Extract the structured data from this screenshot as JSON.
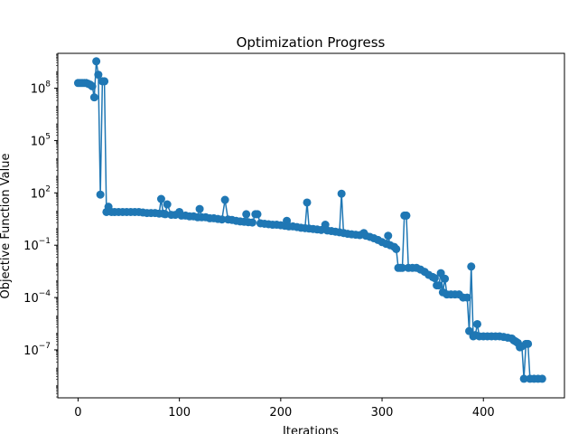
{
  "chart_data": {
    "type": "line",
    "title": "Optimization Progress",
    "xlabel": "Iterations",
    "ylabel": "Objective Function Value",
    "xscale": "linear",
    "yscale": "log",
    "xlim": [
      -20,
      480
    ],
    "ylim_exponent": [
      -9.75,
      10.0
    ],
    "x_ticks": [
      {
        "value": 0,
        "label": "0"
      },
      {
        "value": 100,
        "label": "100"
      },
      {
        "value": 200,
        "label": "200"
      },
      {
        "value": 300,
        "label": "300"
      },
      {
        "value": 400,
        "label": "400"
      }
    ],
    "y_ticks": [
      {
        "exp": 8,
        "base": "10",
        "sup": "8"
      },
      {
        "exp": 5,
        "base": "10",
        "sup": "5"
      },
      {
        "exp": 2,
        "base": "10",
        "sup": "2"
      },
      {
        "exp": -1,
        "base": "10",
        "sup": "−1"
      },
      {
        "exp": -4,
        "base": "10",
        "sup": "−4"
      },
      {
        "exp": -7,
        "base": "10",
        "sup": "−7"
      }
    ],
    "grid": false,
    "legend": "none",
    "series": [
      {
        "color": "#1f77b4",
        "marker": "circle",
        "points": [
          [
            0,
            200000000.0
          ],
          [
            2,
            200000000.0
          ],
          [
            4,
            200000000.0
          ],
          [
            6,
            200000000.0
          ],
          [
            8,
            200000000.0
          ],
          [
            10,
            180000000.0
          ],
          [
            12,
            160000000.0
          ],
          [
            14,
            130000000.0
          ],
          [
            16,
            30000000.0
          ],
          [
            18,
            3500000000.0
          ],
          [
            20,
            600000000.0
          ],
          [
            22,
            80
          ],
          [
            24,
            250000000.0
          ],
          [
            26,
            250000000.0
          ],
          [
            28,
            8
          ],
          [
            30,
            16
          ],
          [
            33,
            8
          ],
          [
            36,
            8
          ],
          [
            40,
            8
          ],
          [
            44,
            8
          ],
          [
            48,
            8
          ],
          [
            52,
            8
          ],
          [
            56,
            8
          ],
          [
            60,
            8
          ],
          [
            64,
            7.5
          ],
          [
            68,
            7
          ],
          [
            72,
            7
          ],
          [
            76,
            7
          ],
          [
            80,
            6.5
          ],
          [
            82,
            45
          ],
          [
            84,
            6.5
          ],
          [
            86,
            6
          ],
          [
            88,
            22
          ],
          [
            92,
            5.5
          ],
          [
            96,
            5.5
          ],
          [
            100,
            8
          ],
          [
            102,
            5
          ],
          [
            106,
            5
          ],
          [
            110,
            4.5
          ],
          [
            114,
            4.5
          ],
          [
            118,
            4
          ],
          [
            120,
            12
          ],
          [
            122,
            4
          ],
          [
            126,
            4
          ],
          [
            130,
            3.5
          ],
          [
            134,
            3.5
          ],
          [
            138,
            3.2
          ],
          [
            142,
            3.0
          ],
          [
            145,
            40
          ],
          [
            148,
            3.0
          ],
          [
            152,
            2.8
          ],
          [
            156,
            2.5
          ],
          [
            160,
            2.3
          ],
          [
            164,
            2.2
          ],
          [
            166,
            6
          ],
          [
            168,
            2.1
          ],
          [
            172,
            2.0
          ],
          [
            175,
            6
          ],
          [
            177,
            6
          ],
          [
            180,
            1.8
          ],
          [
            184,
            1.7
          ],
          [
            188,
            1.6
          ],
          [
            192,
            1.5
          ],
          [
            196,
            1.5
          ],
          [
            200,
            1.4
          ],
          [
            204,
            1.3
          ],
          [
            206,
            2.5
          ],
          [
            208,
            1.2
          ],
          [
            212,
            1.2
          ],
          [
            216,
            1.1
          ],
          [
            220,
            1.0
          ],
          [
            224,
            0.95
          ],
          [
            226,
            28
          ],
          [
            228,
            0.9
          ],
          [
            232,
            0.85
          ],
          [
            236,
            0.8
          ],
          [
            240,
            0.75
          ],
          [
            244,
            1.5
          ],
          [
            246,
            0.7
          ],
          [
            250,
            0.65
          ],
          [
            254,
            0.6
          ],
          [
            258,
            0.55
          ],
          [
            260,
            90
          ],
          [
            262,
            0.5
          ],
          [
            266,
            0.45
          ],
          [
            270,
            0.42
          ],
          [
            274,
            0.4
          ],
          [
            278,
            0.38
          ],
          [
            282,
            0.5
          ],
          [
            284,
            0.35
          ],
          [
            288,
            0.3
          ],
          [
            292,
            0.25
          ],
          [
            296,
            0.2
          ],
          [
            300,
            0.15
          ],
          [
            304,
            0.12
          ],
          [
            306,
            0.35
          ],
          [
            308,
            0.1
          ],
          [
            312,
            0.08
          ],
          [
            314,
            0.06
          ],
          [
            316,
            0.005
          ],
          [
            318,
            0.005
          ],
          [
            320,
            0.005
          ],
          [
            322,
            5
          ],
          [
            324,
            5
          ],
          [
            326,
            0.005
          ],
          [
            330,
            0.005
          ],
          [
            334,
            0.005
          ],
          [
            338,
            0.004
          ],
          [
            342,
            0.003
          ],
          [
            346,
            0.002
          ],
          [
            350,
            0.0015
          ],
          [
            352,
            0.0013
          ],
          [
            354,
            0.0005
          ],
          [
            356,
            0.0005
          ],
          [
            358,
            0.0025
          ],
          [
            360,
            0.0002
          ],
          [
            362,
            0.0012
          ],
          [
            364,
            0.00015
          ],
          [
            368,
            0.00015
          ],
          [
            372,
            0.00015
          ],
          [
            376,
            0.00015
          ],
          [
            380,
            0.0001
          ],
          [
            384,
            0.0001
          ],
          [
            386,
            1.2e-06
          ],
          [
            388,
            0.006
          ],
          [
            390,
            6e-07
          ],
          [
            392,
            7e-07
          ],
          [
            394,
            3e-06
          ],
          [
            396,
            6e-07
          ],
          [
            400,
            6e-07
          ],
          [
            404,
            6e-07
          ],
          [
            408,
            6e-07
          ],
          [
            412,
            6e-07
          ],
          [
            416,
            6e-07
          ],
          [
            420,
            5.5e-07
          ],
          [
            424,
            5e-07
          ],
          [
            428,
            4.5e-07
          ],
          [
            430,
            3.5e-07
          ],
          [
            432,
            3e-07
          ],
          [
            434,
            2.5e-07
          ],
          [
            436,
            1.4e-07
          ],
          [
            438,
            1.6e-07
          ],
          [
            440,
            2.2e-09
          ],
          [
            442,
            2.2e-07
          ],
          [
            444,
            2.2e-07
          ],
          [
            446,
            2.2e-09
          ],
          [
            450,
            2.2e-09
          ],
          [
            454,
            2.2e-09
          ],
          [
            458,
            2.2e-09
          ]
        ]
      }
    ]
  }
}
